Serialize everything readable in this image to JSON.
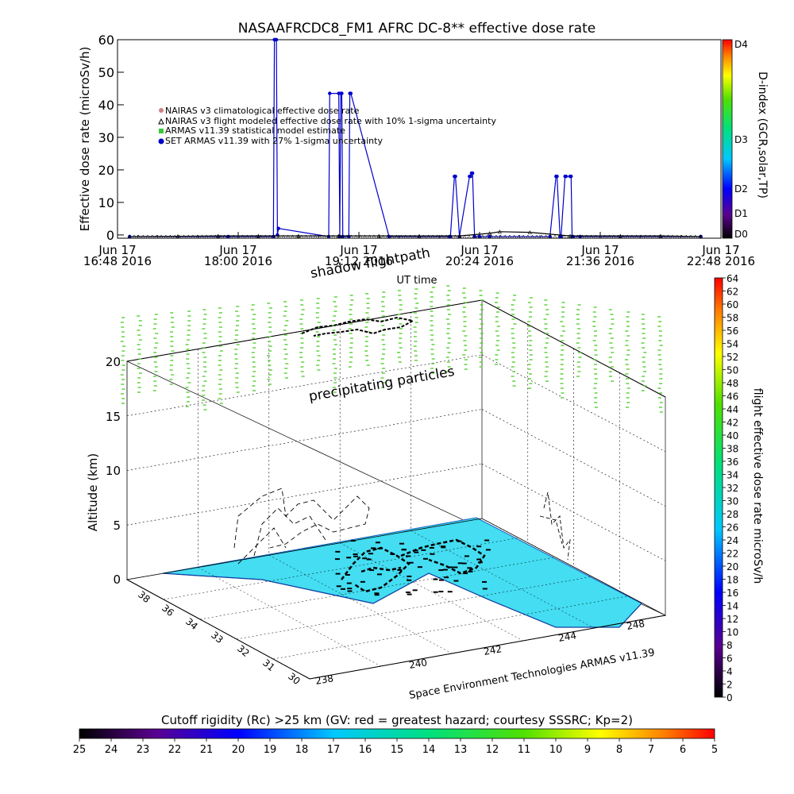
{
  "title": "NASAAFRCDC8_FM1 AFRC DC-8** effective dose rate",
  "footer_credit": "Space Environment Technologies ARMAS v11.39",
  "annotations": {
    "shadow": "shadow flightpath",
    "precip": "precipitating particles"
  },
  "chart_data": [
    {
      "type": "line",
      "title": "NASAAFRCDC8_FM1 AFRC DC-8** effective dose rate",
      "xlabel": "UT time",
      "ylabel": "Effective dose rate (microSv/h)",
      "ylim": [
        -1,
        60
      ],
      "yticks": [
        "0",
        "10",
        "20",
        "30",
        "40",
        "50",
        "60"
      ],
      "xticks": [
        {
          "t": 16.8,
          "l1": "Jun 17",
          "l2": "16:48 2016"
        },
        {
          "t": 18.0,
          "l1": "Jun 17",
          "l2": "18:00 2016"
        },
        {
          "t": 19.2,
          "l1": "Jun 17",
          "l2": "19:12 2016"
        },
        {
          "t": 20.4,
          "l1": "Jun 17",
          "l2": "20:24 2016"
        },
        {
          "t": 21.6,
          "l1": "Jun 17",
          "l2": "21:36 2016"
        },
        {
          "t": 22.8,
          "l1": "Jun 17",
          "l2": "22:48 2016"
        }
      ],
      "xlim": [
        16.8,
        22.8
      ],
      "legend": [
        {
          "label": "NAIRAS v3 climatological effective dose rate",
          "color": "#d08080",
          "marker": "circle"
        },
        {
          "label": "NAIRAS v3 flight modeled effective dose rate with 10% 1-sigma uncertainty",
          "color": "#000000",
          "marker": "triangle"
        },
        {
          "label": "ARMAS v11.39 statistical model estimate",
          "color": "#33cc33",
          "marker": "square"
        },
        {
          "label": "SET ARMAS v11.39 with 27% 1-sigma uncertainty",
          "color": "#0000cc",
          "marker": "circle"
        }
      ],
      "series": [
        {
          "name": "SET ARMAS v11.39 with 27% 1-sigma uncertainty",
          "color": "#0000cc",
          "x": [
            16.92,
            17.9,
            18.35,
            18.36,
            18.37,
            18.38,
            18.39,
            18.4,
            18.9,
            18.91,
            19.0,
            19.01,
            19.02,
            19.03,
            19.04,
            19.1,
            19.11,
            19.12,
            19.5,
            20.1,
            20.11,
            20.15,
            20.16,
            20.2,
            20.3,
            20.31,
            20.32,
            20.33,
            20.35,
            20.4,
            20.5,
            21.1,
            21.16,
            21.17,
            21.2,
            21.21,
            21.25,
            21.26,
            21.3,
            21.31,
            21.32,
            21.33,
            21.4,
            22.6
          ],
          "y": [
            -0.5,
            -0.5,
            -0.5,
            60,
            60,
            60,
            0,
            2,
            -0.5,
            43.5,
            43.5,
            -0.5,
            43.5,
            43.5,
            -0.5,
            -0.5,
            43.5,
            43.5,
            -0.5,
            -0.5,
            -0.5,
            18,
            18,
            -0.5,
            18,
            18,
            19,
            19,
            -0.5,
            -0.5,
            -0.5,
            -0.5,
            18,
            18,
            -0.5,
            -0.5,
            18,
            18,
            18,
            18,
            -0.5,
            -0.5,
            -0.5,
            -0.5
          ]
        },
        {
          "name": "NAIRAS v3 flight modeled effective dose rate with 10% 1-sigma uncertainty",
          "color": "#000000",
          "x": [
            16.92,
            17.4,
            17.8,
            18.2,
            18.6,
            19.0,
            19.4,
            19.8,
            20.2,
            20.5,
            20.6,
            20.9,
            21.3,
            21.8,
            22.2,
            22.6
          ],
          "y": [
            -0.5,
            -0.4,
            -0.3,
            -0.3,
            -0.3,
            -0.3,
            -0.3,
            -0.3,
            -0.3,
            0.5,
            1,
            0.8,
            -0.3,
            -0.3,
            -0.3,
            -0.5
          ]
        }
      ],
      "right_axis": {
        "label": "D-index (GCR,solar,TP)",
        "ticks": [
          "D0",
          "D1",
          "D2",
          "D3",
          "D4"
        ]
      }
    },
    {
      "type": "scatter",
      "title": "",
      "zlabel": "Altitude (km)",
      "zticks": [
        "0",
        "5",
        "10",
        "15",
        "20"
      ],
      "xticks": [
        "238",
        "240",
        "242",
        "244",
        "246",
        "248"
      ],
      "yticks": [
        "30",
        "31",
        "32",
        "33",
        "34",
        "36",
        "38"
      ],
      "notes": [
        "shadow flightpath",
        "precipitating particles"
      ],
      "colorbar": {
        "label": "flight effective dose rate microSv/h",
        "ticks": [
          "0",
          "2",
          "4",
          "6",
          "8",
          "10",
          "12",
          "14",
          "16",
          "18",
          "20",
          "22",
          "24",
          "26",
          "28",
          "30",
          "32",
          "34",
          "36",
          "38",
          "40",
          "42",
          "44",
          "46",
          "48",
          "50",
          "52",
          "54",
          "56",
          "58",
          "60",
          "62",
          "64"
        ]
      }
    },
    {
      "type": "heatmap",
      "title": "Cutoff rigidity (Rc) >25 km (GV: red = greatest hazard; courtesy SSSRC; Kp=2)",
      "ticks": [
        "25",
        "24",
        "23",
        "22",
        "21",
        "20",
        "19",
        "18",
        "17",
        "16",
        "15",
        "14",
        "13",
        "12",
        "11",
        "10",
        "9",
        "8",
        "7",
        "6",
        "5"
      ]
    }
  ]
}
